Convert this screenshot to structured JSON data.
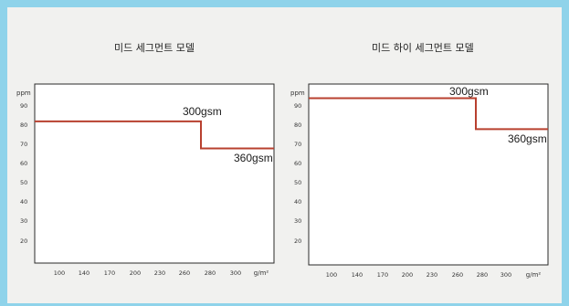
{
  "chart_data": [
    {
      "type": "line",
      "title": "미드 세그먼트 모델",
      "ylabel": "ppm",
      "xlabel": "g/m²",
      "ylim": [
        0,
        100
      ],
      "yticks": [
        "90",
        "80",
        "70",
        "60",
        "50",
        "40",
        "30",
        "20"
      ],
      "xticks": [
        "100",
        "140",
        "170",
        "200",
        "230",
        "260",
        "280",
        "300",
        "g/m²"
      ],
      "series": [
        {
          "points": [
            {
              "x": "start",
              "y": 82
            },
            {
              "x": "280",
              "y": 82
            },
            {
              "x": "280",
              "y": 68
            },
            {
              "x": "end",
              "y": 68
            }
          ],
          "color": "#b8402f"
        }
      ],
      "annotations": [
        "300gsm",
        "360gsm"
      ]
    },
    {
      "type": "line",
      "title": "미드 하이 세그먼트 모델",
      "ylabel": "ppm",
      "xlabel": "g/m²",
      "ylim": [
        0,
        100
      ],
      "yticks": [
        "90",
        "80",
        "70",
        "60",
        "50",
        "40",
        "30",
        "20"
      ],
      "xticks": [
        "100",
        "140",
        "170",
        "200",
        "230",
        "260",
        "280",
        "300",
        "g/m²"
      ],
      "series": [
        {
          "points": [
            {
              "x": "start",
              "y": 94
            },
            {
              "x": "280",
              "y": 94
            },
            {
              "x": "280",
              "y": 78
            },
            {
              "x": "end",
              "y": 78
            }
          ],
          "color": "#b8402f"
        }
      ],
      "annotations": [
        "300gsm",
        "360gsm"
      ]
    }
  ]
}
